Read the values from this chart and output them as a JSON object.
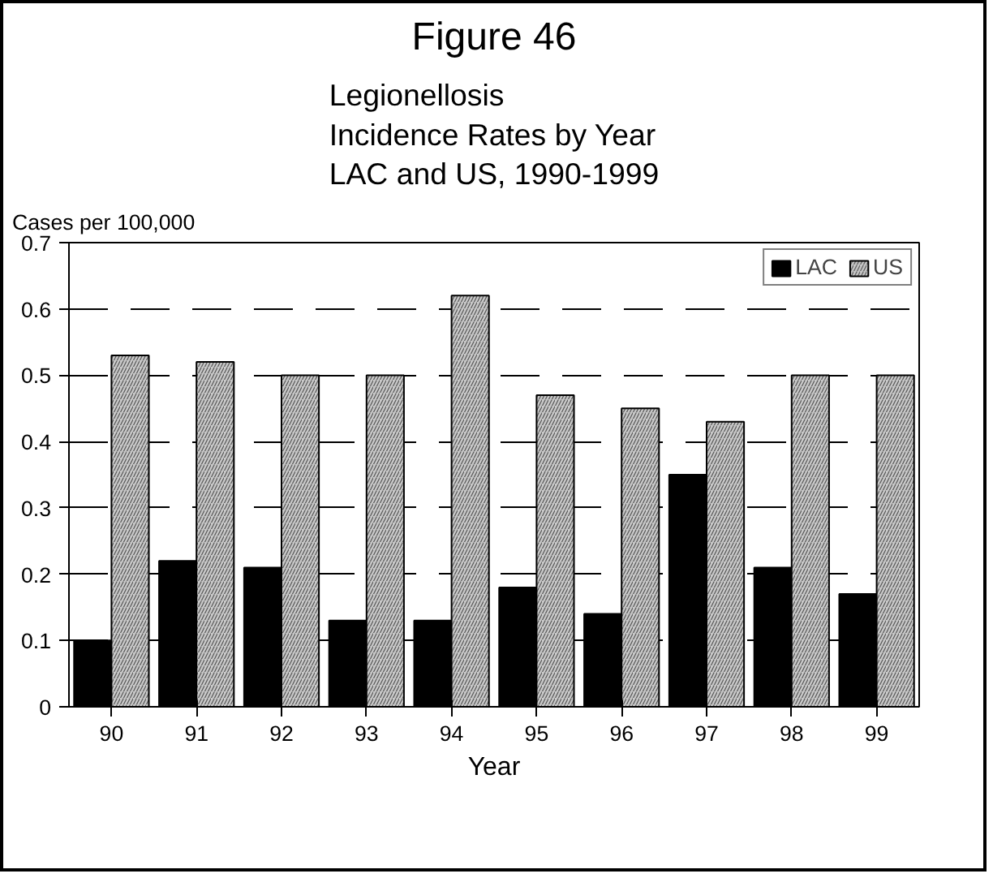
{
  "chart_data": {
    "type": "bar",
    "title": "Figure 46",
    "subtitle": "Legionellosis\nIncidence Rates by Year\nLAC and US, 1990-1999",
    "xlabel": "Year",
    "ylabel": "Cases per 100,000",
    "categories": [
      "90",
      "91",
      "92",
      "93",
      "94",
      "95",
      "96",
      "97",
      "98",
      "99"
    ],
    "series": [
      {
        "name": "LAC",
        "color": "#000000",
        "values": [
          0.1,
          0.22,
          0.21,
          0.13,
          0.13,
          0.18,
          0.14,
          0.35,
          0.21,
          0.17
        ]
      },
      {
        "name": "US",
        "color": "#c8c8c8",
        "values": [
          0.53,
          0.52,
          0.5,
          0.5,
          0.62,
          0.47,
          0.45,
          0.43,
          0.5,
          0.5
        ]
      }
    ],
    "ylim": [
      0,
      0.7
    ],
    "yticks": [
      0,
      0.1,
      0.2,
      0.3,
      0.4,
      0.5,
      0.6,
      0.7
    ],
    "grid": "y",
    "legend": "top right"
  }
}
